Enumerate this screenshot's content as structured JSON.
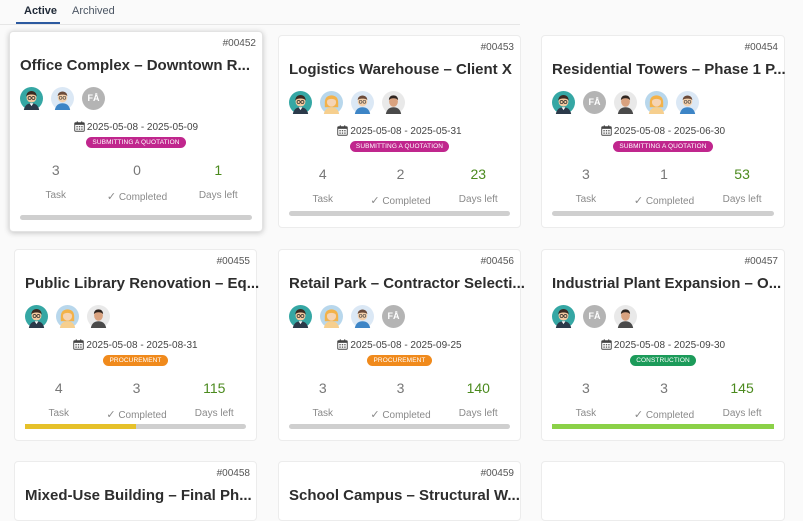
{
  "tabs": [
    {
      "label": "Active",
      "selected": true
    },
    {
      "label": "Archived",
      "selected": false
    }
  ],
  "labels": {
    "task": "Task",
    "completed": "Completed",
    "days_left": "Days left"
  },
  "colors": {
    "accent": "#2c5aa0",
    "quotation": "#c0268d",
    "procurement": "#f08a1c",
    "construction": "#1c9b5a",
    "progress_yellow": "#e6c12a",
    "progress_green": "#8bd148",
    "bar_track": "#cfcfcf"
  },
  "projects": [
    {
      "id": "#00452",
      "title": "Office Complex – Downtown R...",
      "date_range": "2025-05-08 - 2025-05-09",
      "status": "SUBMITTING A QUOTATION",
      "status_color": "#c0268d",
      "avatars": [
        "avatar-man-glasses-icon",
        "avatar-man-blue-icon",
        "FÅ"
      ],
      "task": "3",
      "completed": "0",
      "days_left": "1",
      "progress": 0,
      "progress_color": "#cfcfcf"
    },
    {
      "id": "#00453",
      "title": "Logistics Warehouse – Client X",
      "date_range": "2025-05-08 - 2025-05-31",
      "status": "SUBMITTING A QUOTATION",
      "status_color": "#c0268d",
      "avatars": [
        "avatar-man-glasses-icon",
        "avatar-woman-blonde-icon",
        "avatar-man-blue-icon",
        "avatar-photo-man-icon"
      ],
      "task": "4",
      "completed": "2",
      "days_left": "23",
      "progress": 0,
      "progress_color": "#cfcfcf"
    },
    {
      "id": "#00454",
      "title": "Residential Towers – Phase 1 P...",
      "date_range": "2025-05-08 - 2025-06-30",
      "status": "SUBMITTING A QUOTATION",
      "status_color": "#c0268d",
      "avatars": [
        "avatar-man-glasses-icon",
        "FÅ",
        "avatar-photo-man-icon",
        "avatar-woman-blonde-icon",
        "avatar-man-blue-icon"
      ],
      "task": "3",
      "completed": "1",
      "days_left": "53",
      "progress": 0,
      "progress_color": "#cfcfcf"
    },
    {
      "id": "#00455",
      "title": "Public Library Renovation – Eq...",
      "date_range": "2025-05-08 - 2025-08-31",
      "status": "PROCUREMENT",
      "status_color": "#f08a1c",
      "avatars": [
        "avatar-man-glasses-icon",
        "avatar-woman-blonde-icon",
        "avatar-photo-man-icon"
      ],
      "task": "4",
      "completed": "3",
      "days_left": "115",
      "progress": 0.5,
      "progress_color": "#e6c12a"
    },
    {
      "id": "#00456",
      "title": "Retail Park – Contractor Selecti...",
      "date_range": "2025-05-08 - 2025-09-25",
      "status": "PROCUREMENT",
      "status_color": "#f08a1c",
      "avatars": [
        "avatar-man-glasses-icon",
        "avatar-woman-blonde-icon",
        "avatar-man-blue-icon",
        "FÅ"
      ],
      "task": "3",
      "completed": "3",
      "days_left": "140",
      "progress": 0,
      "progress_color": "#cfcfcf"
    },
    {
      "id": "#00457",
      "title": "Industrial Plant Expansion – O...",
      "date_range": "2025-05-08 - 2025-09-30",
      "status": "CONSTRUCTION",
      "status_color": "#1c9b5a",
      "avatars": [
        "avatar-man-glasses-icon",
        "FÅ",
        "avatar-photo-man-icon"
      ],
      "task": "3",
      "completed": "3",
      "days_left": "145",
      "progress": 1,
      "progress_color": "#8bd148"
    },
    {
      "id": "#00458",
      "title": "Mixed-Use Building – Final Ph...",
      "date_range": "",
      "status": "",
      "status_color": "#cfcfcf",
      "avatars": [],
      "task": "",
      "completed": "",
      "days_left": "",
      "progress": 0,
      "progress_color": "#cfcfcf"
    },
    {
      "id": "#00459",
      "title": "School Campus – Structural W...",
      "date_range": "",
      "status": "",
      "status_color": "#cfcfcf",
      "avatars": [],
      "task": "",
      "completed": "",
      "days_left": "",
      "progress": 0,
      "progress_color": "#cfcfcf"
    }
  ]
}
